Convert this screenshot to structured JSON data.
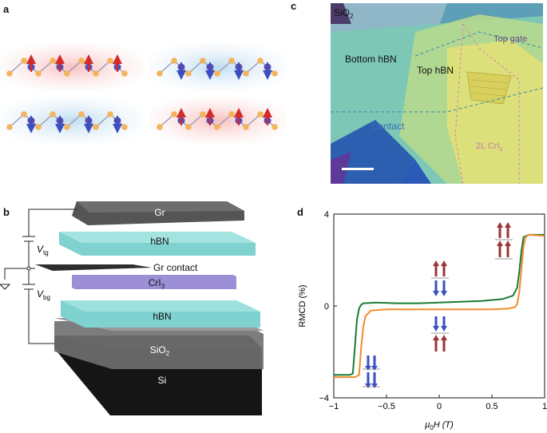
{
  "panels": {
    "a": "a",
    "b": "b",
    "c": "c",
    "d": "d"
  },
  "panel_b": {
    "layers": [
      "Gr",
      "hBN",
      "Gr contact",
      "CrI",
      "hBN",
      "SiO",
      "Si"
    ],
    "crI3_subscript": "3",
    "sio2_subscript": "2",
    "vtg_main": "V",
    "vtg_sub": "tg",
    "vbg_main": "V",
    "vbg_sub": "bg"
  },
  "panel_c": {
    "labels": {
      "sio2": "SiO",
      "sio2_sub": "2",
      "top_gate": "Top gate",
      "bottom_hbn": "Bottom hBN",
      "top_hbn": "Top hBN",
      "contact": "Contact",
      "crI3": "2L CrI",
      "crI3_sub": "3"
    },
    "colors": {
      "sio2_blue": "#3a8fc0",
      "hbn_teal": "#6fc3b8",
      "crI3_yellow": "#e6e37a",
      "label_pink": "#e07cae",
      "contact_blue": "#3c6fb8"
    }
  },
  "chart_data": {
    "type": "line",
    "xlabel_main": "μ",
    "xlabel_sub": "0",
    "xlabel_rest": "H (T)",
    "ylabel": "RMCD (%)",
    "xlim": [
      -1,
      1
    ],
    "ylim": [
      -4,
      4
    ],
    "xticks": [
      "−1",
      "−0.5",
      "0",
      "0.5",
      "1"
    ],
    "xtick_values": [
      -1,
      -0.5,
      0,
      0.5,
      1
    ],
    "yticks": [
      "4",
      "0",
      "−4"
    ],
    "ytick_values": [
      4,
      0,
      -4
    ],
    "grid": false,
    "series": [
      {
        "color": "#1a7a35",
        "x": [
          -1,
          -0.85,
          -0.82,
          -0.8,
          -0.78,
          -0.76,
          -0.74,
          -0.72,
          -0.6,
          -0.4,
          -0.2,
          0,
          0.2,
          0.4,
          0.6,
          0.7,
          0.74,
          0.76,
          0.78,
          0.8,
          0.85,
          1
        ],
        "y": [
          -3.0,
          -3.0,
          -2.95,
          -1.8,
          -0.6,
          -0.1,
          0.05,
          0.12,
          0.15,
          0.12,
          0.12,
          0.15,
          0.18,
          0.22,
          0.3,
          0.45,
          0.8,
          1.5,
          2.4,
          3.0,
          3.1,
          3.1
        ]
      },
      {
        "color": "#f08c2a",
        "x": [
          -1,
          -0.8,
          -0.76,
          -0.74,
          -0.72,
          -0.7,
          -0.65,
          -0.5,
          -0.3,
          -0.1,
          0.1,
          0.3,
          0.5,
          0.65,
          0.72,
          0.74,
          0.76,
          0.78,
          0.8,
          0.82,
          0.85,
          1
        ],
        "y": [
          -3.1,
          -3.1,
          -3.0,
          -1.8,
          -0.9,
          -0.45,
          -0.2,
          -0.15,
          -0.15,
          -0.15,
          -0.15,
          -0.15,
          -0.15,
          -0.12,
          -0.05,
          0.1,
          0.6,
          1.6,
          2.6,
          3.0,
          3.1,
          3.05
        ]
      }
    ]
  }
}
